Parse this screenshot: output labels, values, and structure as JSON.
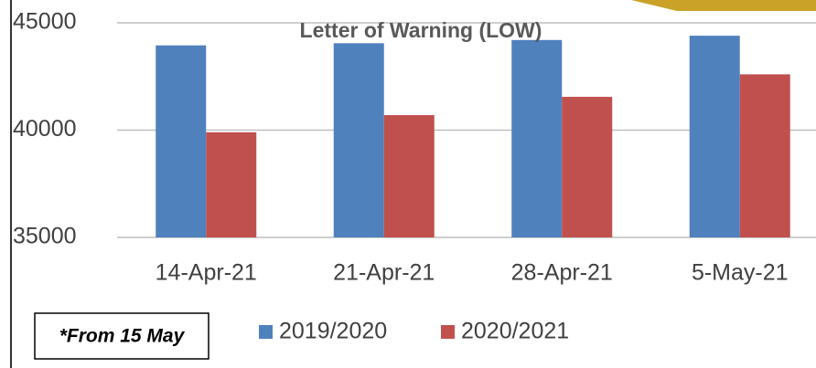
{
  "chart_data": {
    "type": "bar",
    "title": "Letter of  Warning (LOW)",
    "categories": [
      "14-Apr-21",
      "21-Apr-21",
      "28-Apr-21",
      "5-May-21"
    ],
    "series": [
      {
        "name": "2019/2020",
        "color": "#4f81bd",
        "values": [
          43950,
          44050,
          44200,
          44400
        ]
      },
      {
        "name": "2020/2021",
        "color": "#c0504d",
        "values": [
          39900,
          40700,
          41550,
          42600
        ]
      }
    ],
    "ylim": [
      35000,
      45000
    ],
    "yticks": [
      35000,
      40000,
      45000
    ],
    "grid": true,
    "note": "*From 15 May",
    "legend": "bottom"
  }
}
